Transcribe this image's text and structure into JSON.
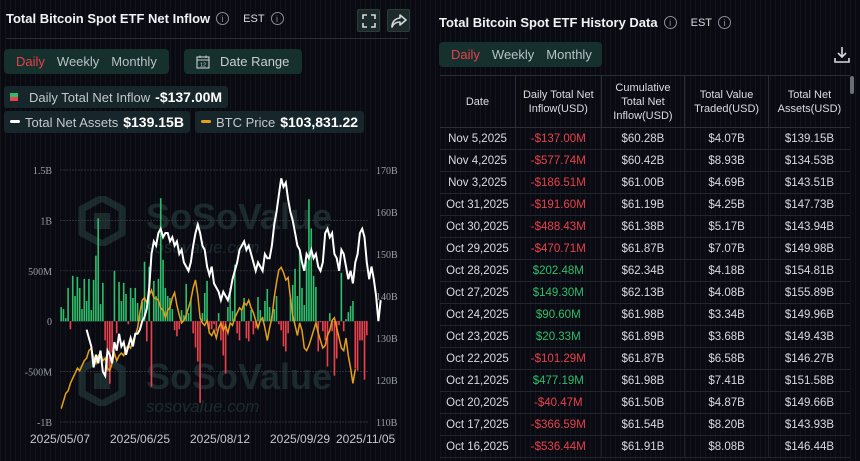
{
  "left_panel": {
    "title": "Total Bitcoin Spot ETF Net Inflow",
    "timezone": "EST",
    "tabs": [
      {
        "label": "Daily",
        "active": true
      },
      {
        "label": "Weekly",
        "active": false
      },
      {
        "label": "Monthly",
        "active": false
      }
    ],
    "date_range_label": "Date Range",
    "calendar_day": "12",
    "legend": {
      "inflow_label": "Daily Total Net Inflow",
      "inflow_value": "-$137.00M",
      "assets_label": "Total Net Assets",
      "assets_value": "$139.15B",
      "btc_label": "BTC Price",
      "btc_value": "$103,831.22"
    },
    "watermark": {
      "brand": "SoSoValue",
      "url": "sosovalue.com"
    }
  },
  "right_panel": {
    "title": "Total Bitcoin Spot ETF History Data",
    "timezone": "EST",
    "tabs": [
      {
        "label": "Daily",
        "active": true
      },
      {
        "label": "Weekly",
        "active": false
      },
      {
        "label": "Monthly",
        "active": false
      }
    ],
    "download_icon": "download-icon",
    "columns": [
      "Date",
      "Daily Total Net Inflow(USD)",
      "Cumulative Total Net Inflow(USD)",
      "Total Value Traded(USD)",
      "Total Net Assets(USD)"
    ],
    "rows": [
      {
        "date": "Nov 5,2025",
        "inflow": "-$137.00M",
        "cumulative": "$60.28B",
        "traded": "$4.07B",
        "assets": "$139.15B",
        "sign": "neg"
      },
      {
        "date": "Nov 4,2025",
        "inflow": "-$577.74M",
        "cumulative": "$60.42B",
        "traded": "$8.93B",
        "assets": "$134.53B",
        "sign": "neg"
      },
      {
        "date": "Nov 3,2025",
        "inflow": "-$186.51M",
        "cumulative": "$61.00B",
        "traded": "$4.69B",
        "assets": "$143.51B",
        "sign": "neg"
      },
      {
        "date": "Oct 31,2025",
        "inflow": "-$191.60M",
        "cumulative": "$61.19B",
        "traded": "$4.25B",
        "assets": "$147.73B",
        "sign": "neg"
      },
      {
        "date": "Oct 30,2025",
        "inflow": "-$488.43M",
        "cumulative": "$61.38B",
        "traded": "$5.17B",
        "assets": "$143.94B",
        "sign": "neg"
      },
      {
        "date": "Oct 29,2025",
        "inflow": "-$470.71M",
        "cumulative": "$61.87B",
        "traded": "$7.07B",
        "assets": "$149.98B",
        "sign": "neg"
      },
      {
        "date": "Oct 28,2025",
        "inflow": "$202.48M",
        "cumulative": "$62.34B",
        "traded": "$4.18B",
        "assets": "$154.81B",
        "sign": "pos"
      },
      {
        "date": "Oct 27,2025",
        "inflow": "$149.30M",
        "cumulative": "$62.13B",
        "traded": "$4.08B",
        "assets": "$155.89B",
        "sign": "pos"
      },
      {
        "date": "Oct 24,2025",
        "inflow": "$90.60M",
        "cumulative": "$61.98B",
        "traded": "$3.34B",
        "assets": "$149.96B",
        "sign": "pos"
      },
      {
        "date": "Oct 23,2025",
        "inflow": "$20.33M",
        "cumulative": "$61.89B",
        "traded": "$3.68B",
        "assets": "$149.43B",
        "sign": "pos"
      },
      {
        "date": "Oct 22,2025",
        "inflow": "-$101.29M",
        "cumulative": "$61.87B",
        "traded": "$6.58B",
        "assets": "$146.27B",
        "sign": "neg"
      },
      {
        "date": "Oct 21,2025",
        "inflow": "$477.19M",
        "cumulative": "$61.98B",
        "traded": "$7.41B",
        "assets": "$151.58B",
        "sign": "pos"
      },
      {
        "date": "Oct 20,2025",
        "inflow": "-$40.47M",
        "cumulative": "$61.50B",
        "traded": "$4.87B",
        "assets": "$149.66B",
        "sign": "neg"
      },
      {
        "date": "Oct 17,2025",
        "inflow": "-$366.59M",
        "cumulative": "$61.54B",
        "traded": "$8.20B",
        "assets": "$143.93B",
        "sign": "neg"
      },
      {
        "date": "Oct 16,2025",
        "inflow": "-$536.44M",
        "cumulative": "$61.91B",
        "traded": "$8.08B",
        "assets": "$146.44B",
        "sign": "neg"
      }
    ]
  },
  "colors": {
    "positive": "#2ebd6b",
    "negative": "#e8414c",
    "assets_line": "#ffffff",
    "btc_line": "#e5a01b",
    "accent_tab": "#e8414c",
    "pill_bg": "#15302d"
  },
  "chart_data": {
    "type": "bar",
    "title": "Total Bitcoin Spot ETF Net Inflow",
    "xlabel": "",
    "ylabel_left": "Daily Total Net Inflow",
    "ylabel_right": "Total Net Assets",
    "x_tick_labels": [
      "2025/05/07",
      "2025/06/25",
      "2025/08/12",
      "2025/09/29",
      "2025/11/05"
    ],
    "y_left_ticks": [
      "-1B",
      "-500M",
      "0",
      "500M",
      "1B",
      "1.5B"
    ],
    "y_left_range": [
      -1000000000,
      1500000000
    ],
    "y_right_ticks": [
      "110B",
      "120B",
      "130B",
      "140B",
      "150B",
      "160B",
      "170B"
    ],
    "y_right_range": [
      110,
      170
    ],
    "grid": true,
    "legend": [
      "Daily Total Net Inflow",
      "Total Net Assets",
      "BTC Price"
    ],
    "series": [
      {
        "name": "Daily Total Net Inflow",
        "type": "bar",
        "unit": "M USD",
        "values": [
          140,
          120,
          30,
          330,
          -80,
          450,
          250,
          440,
          330,
          120,
          420,
          200,
          420,
          110,
          410,
          650,
          1020,
          170,
          380,
          -190,
          -500,
          -620,
          -310,
          500,
          -120,
          390,
          200,
          380,
          270,
          -30,
          330,
          230,
          330,
          180,
          60,
          190,
          590,
          -200,
          540,
          -650,
          400,
          250,
          420,
          1220,
          610,
          330,
          250,
          230,
          120,
          -90,
          -150,
          -80,
          110,
          60,
          370,
          80,
          210,
          -120,
          -260,
          -400,
          -810,
          80,
          280,
          400,
          -80,
          -80,
          -30,
          -100,
          80,
          -190,
          -340,
          -520,
          140,
          330,
          100,
          560,
          -120,
          -190,
          100,
          230,
          -170,
          -200,
          110,
          -130,
          -70,
          240,
          110,
          40,
          200,
          320,
          140,
          50,
          120,
          250,
          -30,
          -90,
          -250,
          -300,
          -120,
          220,
          360,
          520,
          250,
          700,
          330,
          160,
          600,
          1210,
          920,
          450,
          340,
          -300,
          -10,
          -100,
          -190,
          -450,
          80,
          -100,
          -540,
          -370,
          -40,
          480,
          -100,
          20,
          90,
          150,
          200,
          -470,
          -490,
          -190,
          -190,
          -580,
          -140
        ],
        "last_value": -137.0
      },
      {
        "name": "Total Net Assets",
        "type": "line",
        "unit": "B USD",
        "values": [
          null,
          null,
          null,
          null,
          null,
          null,
          null,
          null,
          null,
          null,
          null,
          132,
          130,
          128,
          123,
          126,
          124,
          127,
          122,
          121,
          127,
          126,
          124,
          129,
          127,
          131,
          128,
          129,
          126,
          128,
          130,
          128,
          131,
          131,
          132,
          134,
          135,
          137,
          142,
          150,
          153,
          152,
          155,
          156,
          154,
          155,
          155,
          153,
          154,
          152,
          153,
          150,
          151,
          148,
          147,
          146,
          148,
          152,
          155,
          157,
          155,
          152,
          151,
          147,
          145,
          147,
          143,
          142,
          141,
          139,
          141,
          140,
          139,
          141,
          144,
          146,
          148,
          151,
          152,
          153,
          151,
          152,
          150,
          148,
          146,
          148,
          147,
          146,
          150,
          149,
          149,
          152,
          157,
          160,
          164,
          168,
          166,
          167,
          163,
          160,
          158,
          155,
          152,
          151,
          148,
          146,
          150,
          149,
          151,
          149,
          150,
          147,
          146,
          148,
          155,
          156,
          154,
          155,
          150,
          149,
          146,
          151,
          150,
          147,
          144,
          146,
          143,
          148,
          150,
          155,
          156,
          154,
          148,
          144,
          147,
          144,
          140,
          134,
          139
        ],
        "last_value": 139.15
      },
      {
        "name": "BTC Price",
        "type": "line",
        "unit": "USD (scaled)",
        "values": [
          96000,
          97500,
          99000,
          99500,
          101000,
          102000,
          103000,
          104000,
          103500,
          104500,
          105500,
          106000,
          107500,
          108000,
          106000,
          105000,
          106500,
          107000,
          105500,
          106000,
          104000,
          103500,
          105000,
          107000,
          105500,
          106500,
          107000,
          106500,
          108000,
          108500,
          108000,
          109500,
          110500,
          112000,
          115000,
          117500,
          118000,
          117000,
          118500,
          119500,
          118000,
          117800,
          117500,
          116000,
          115500,
          114000,
          115500,
          116000,
          118000,
          119000,
          116500,
          114500,
          113000,
          113500,
          114500,
          116000,
          117500,
          120000,
          121500,
          118500,
          114000,
          113000,
          112500,
          113500,
          111000,
          110500,
          111500,
          110000,
          112000,
          113000,
          111500,
          112500,
          111000,
          113000,
          112500,
          114000,
          115000,
          116000,
          115500,
          117000,
          116500,
          117500,
          116000,
          115000,
          113500,
          112000,
          113500,
          114000,
          112000,
          109500,
          112000,
          114000,
          118000,
          121000,
          123500,
          124000,
          123000,
          121500,
          122000,
          118000,
          114500,
          112500,
          110500,
          113000,
          111500,
          108000,
          107500,
          108500,
          110000,
          111500,
          113000,
          111000,
          109500,
          108000,
          108500,
          110500,
          111500,
          113500,
          114000,
          112000,
          110000,
          108000,
          107500,
          110000,
          106500,
          104000,
          101000,
          103800
        ],
        "last_value": 103831.22
      }
    ]
  }
}
